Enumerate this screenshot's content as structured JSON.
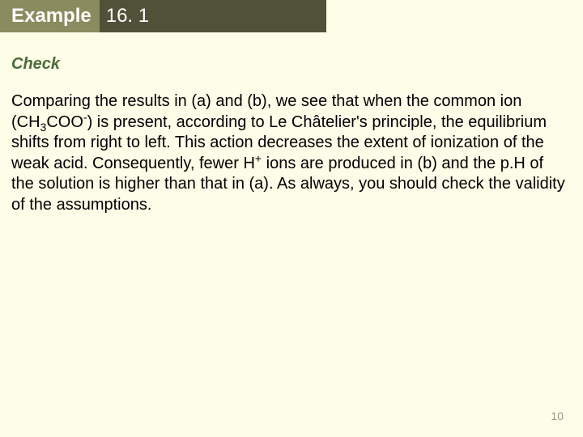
{
  "header": {
    "label": "Example",
    "number": "16. 1"
  },
  "section_heading": "Check",
  "body_pre": "Comparing the results in (a) and (b), we see that when the common ion (CH",
  "body_sub1": "3",
  "body_mid1": "COO",
  "body_sup1": "-",
  "body_mid2": ") is present, according to Le Châtelier's principle, the equilibrium shifts from right to left. This action decreases the extent of ionization of the weak acid. Consequently, fewer H",
  "body_sup2": "+",
  "body_post": " ions are produced in (b) and the p.H of the solution is higher than that in (a). As always, you should check the validity of the assumptions.",
  "page_number": "10",
  "colors": {
    "background": "#fefde8",
    "header_label_bg": "#8a8b5f",
    "header_number_bg": "#505138",
    "heading_color": "#4a6b3a",
    "page_num_color": "#9a9a82"
  }
}
